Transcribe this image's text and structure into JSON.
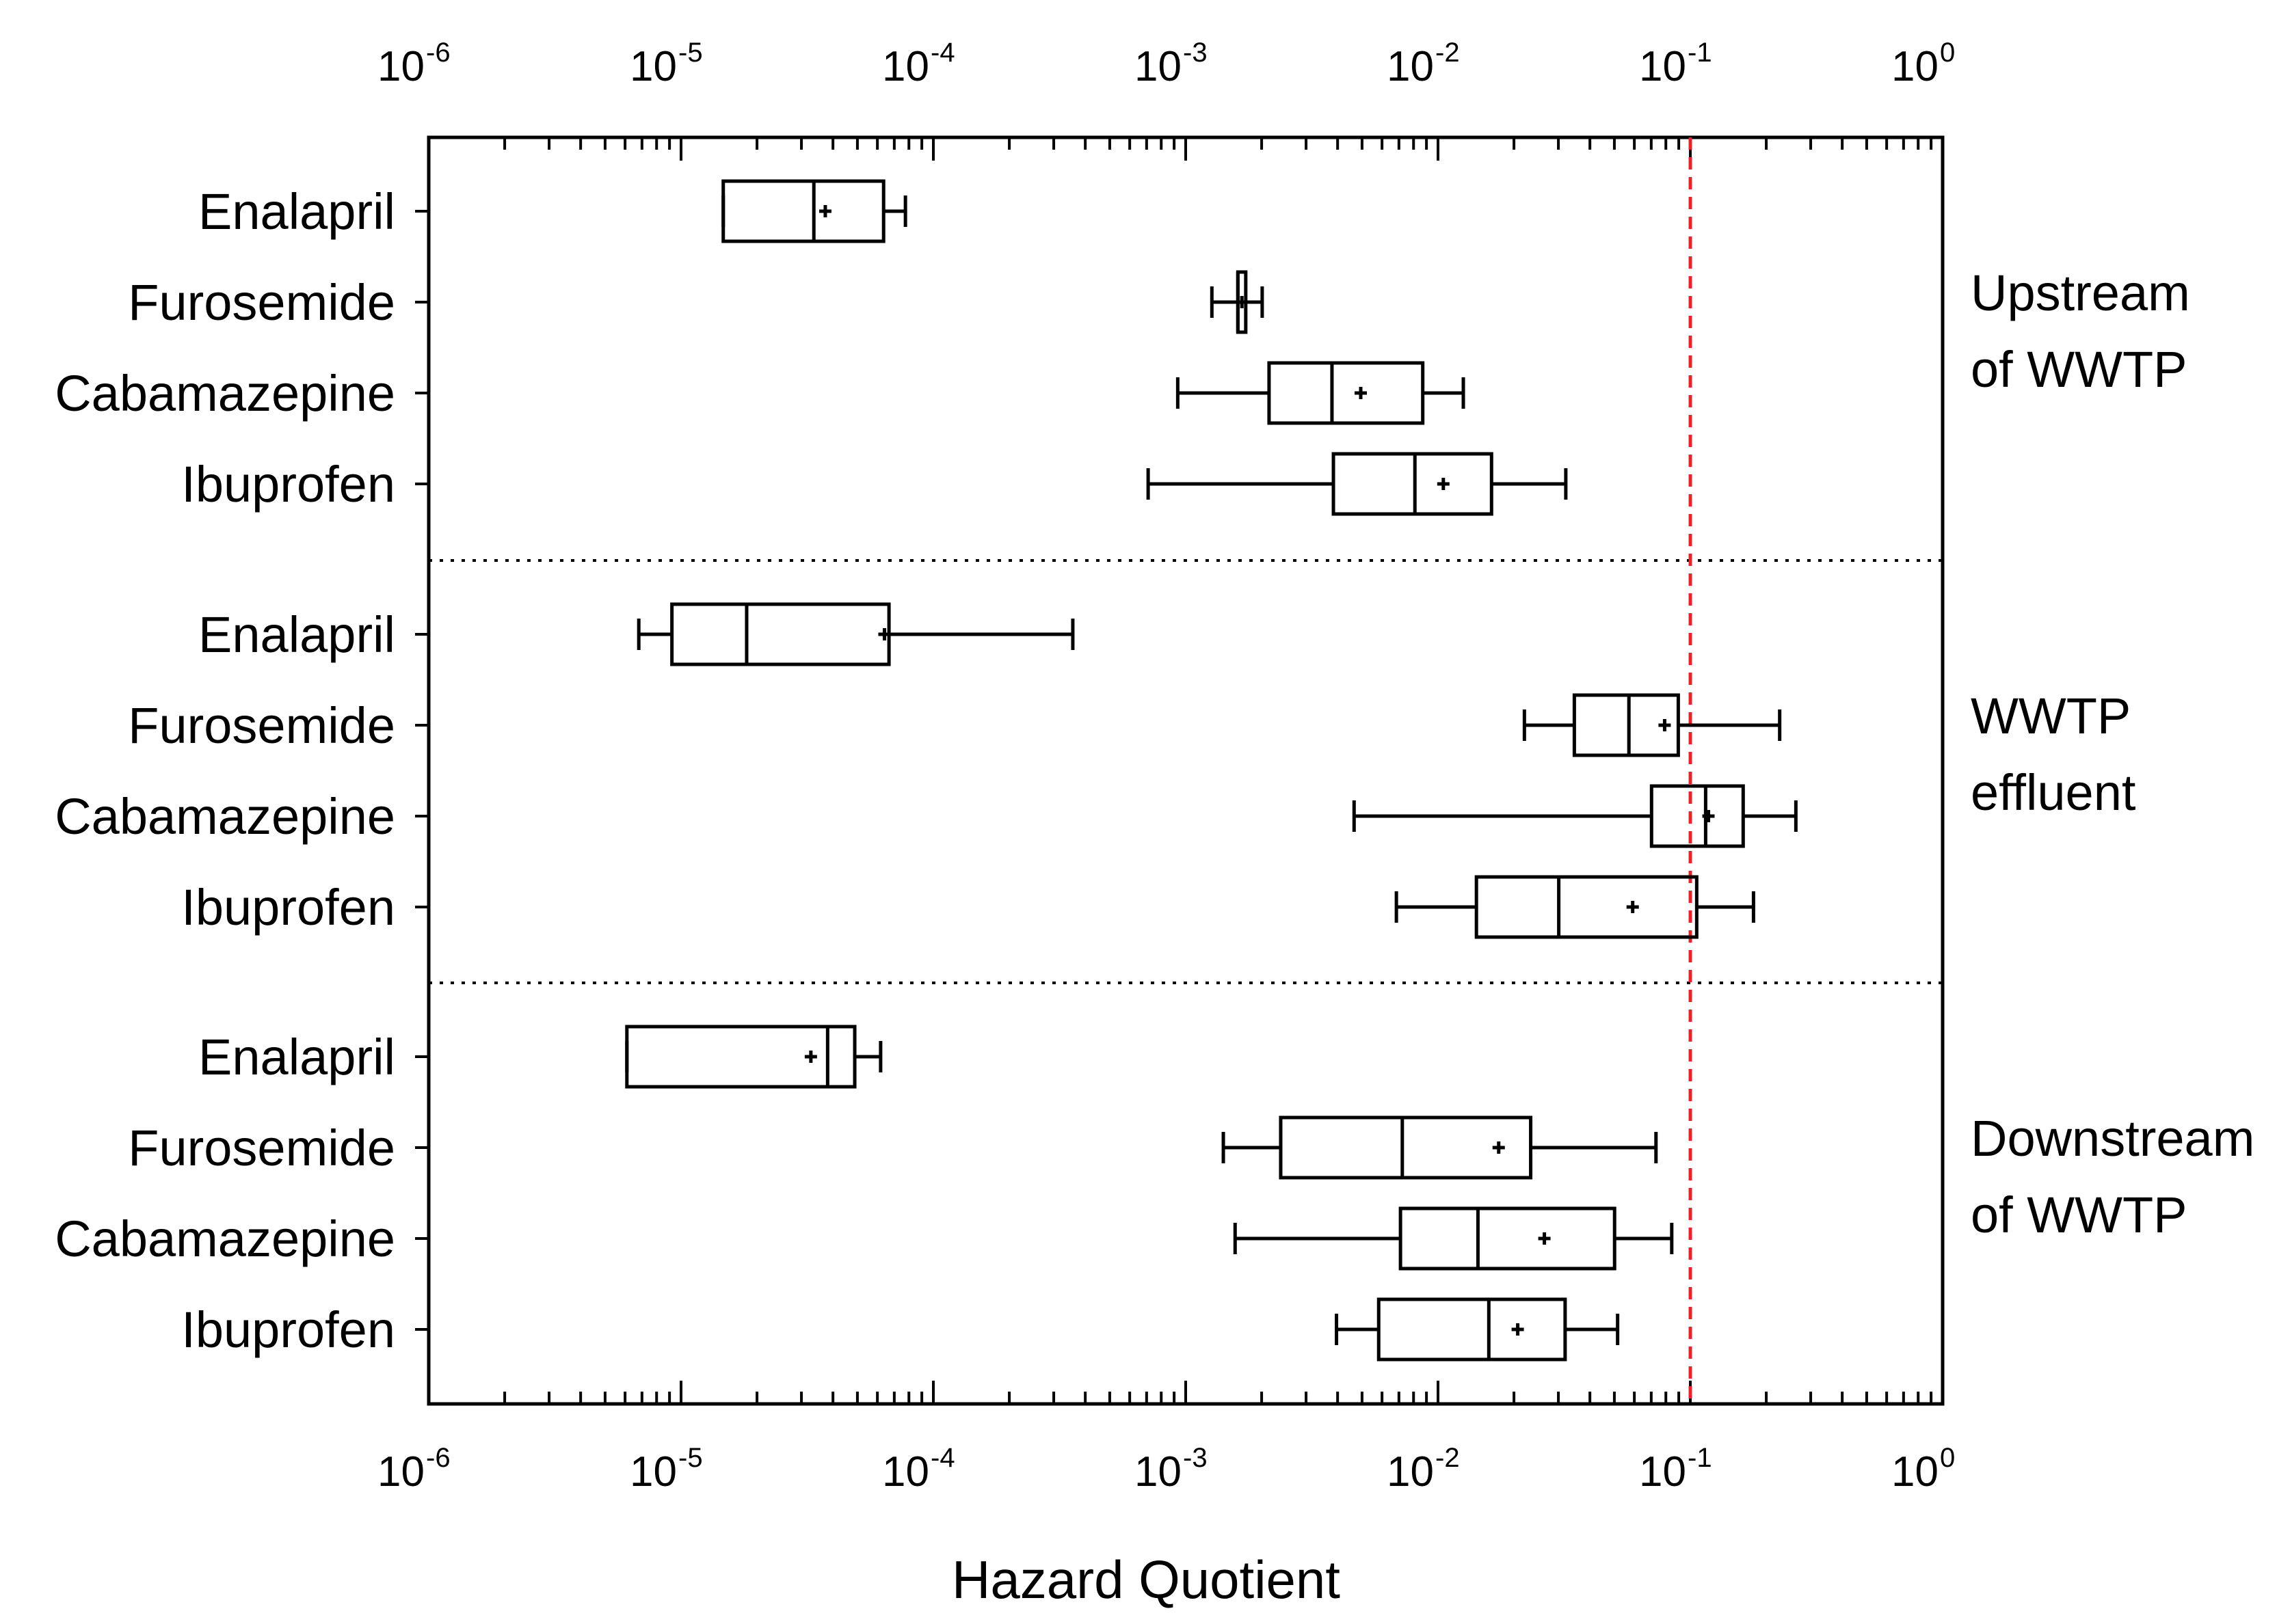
{
  "chart_data": {
    "type": "boxplot",
    "orientation": "horizontal",
    "xscale": "log",
    "xlim": [
      1e-06,
      1
    ],
    "xlabel": "Hazard Quotient",
    "tick_labels": [
      {
        "base": "10",
        "exp": "-6"
      },
      {
        "base": "10",
        "exp": "-5"
      },
      {
        "base": "10",
        "exp": "-4"
      },
      {
        "base": "10",
        "exp": "-3"
      },
      {
        "base": "10",
        "exp": "-2"
      },
      {
        "base": "10",
        "exp": "-1"
      },
      {
        "base": "10",
        "exp": "0"
      }
    ],
    "reference_line": {
      "value": 0.1,
      "color": "#e8242a",
      "style": "dashed"
    },
    "colors": {
      "box": "#000000",
      "reference": "#e8242a"
    },
    "groups": [
      {
        "label_lines": [
          "Upstream",
          "of WWTP"
        ],
        "items": [
          {
            "name": "Enalapril",
            "min": 1.47e-05,
            "q1": 1.47e-05,
            "median": 3.36e-05,
            "q3": 6.35e-05,
            "max": 7.75e-05,
            "mean": 3.73e-05
          },
          {
            "name": "Furosemide",
            "min": 0.00127,
            "q1": 0.00161,
            "median": 0.00161,
            "q3": 0.00173,
            "max": 0.00201,
            "mean": 0.00167
          },
          {
            "name": "Cabamazepine",
            "min": 0.00093,
            "q1": 0.00214,
            "median": 0.0038,
            "q3": 0.0087,
            "max": 0.0126,
            "mean": 0.00494
          },
          {
            "name": "Ibuprofen",
            "min": 0.00071,
            "q1": 0.00385,
            "median": 0.0081,
            "q3": 0.0163,
            "max": 0.0321,
            "mean": 0.0105
          }
        ]
      },
      {
        "label_lines": [
          "WWTP",
          "effluent"
        ],
        "items": [
          {
            "name": "Enalapril",
            "min": 6.8e-06,
            "q1": 9.2e-06,
            "median": 1.82e-05,
            "q3": 6.67e-05,
            "max": 0.000357,
            "mean": 6.4e-05
          },
          {
            "name": "Furosemide",
            "min": 0.022,
            "q1": 0.0347,
            "median": 0.0571,
            "q3": 0.0896,
            "max": 0.226,
            "mean": 0.0791
          },
          {
            "name": "Cabamazepine",
            "min": 0.00465,
            "q1": 0.0702,
            "median": 0.115,
            "q3": 0.162,
            "max": 0.262,
            "mean": 0.118
          },
          {
            "name": "Ibuprofen",
            "min": 0.00684,
            "q1": 0.0142,
            "median": 0.0301,
            "q3": 0.106,
            "max": 0.178,
            "mean": 0.0591
          }
        ]
      },
      {
        "label_lines": [
          "Downstream",
          "of WWTP"
        ],
        "items": [
          {
            "name": "Enalapril",
            "min": 6.1e-06,
            "q1": 6.1e-06,
            "median": 3.81e-05,
            "q3": 4.88e-05,
            "max": 6.18e-05,
            "mean": 3.27e-05
          },
          {
            "name": "Furosemide",
            "min": 0.00141,
            "q1": 0.00238,
            "median": 0.00722,
            "q3": 0.0233,
            "max": 0.0731,
            "mean": 0.0174
          },
          {
            "name": "Cabamazepine",
            "min": 0.00157,
            "q1": 0.0071,
            "median": 0.0144,
            "q3": 0.0501,
            "max": 0.0844,
            "mean": 0.0264
          },
          {
            "name": "Ibuprofen",
            "min": 0.00396,
            "q1": 0.00582,
            "median": 0.0159,
            "q3": 0.0319,
            "max": 0.0515,
            "mean": 0.0207
          }
        ]
      }
    ]
  }
}
